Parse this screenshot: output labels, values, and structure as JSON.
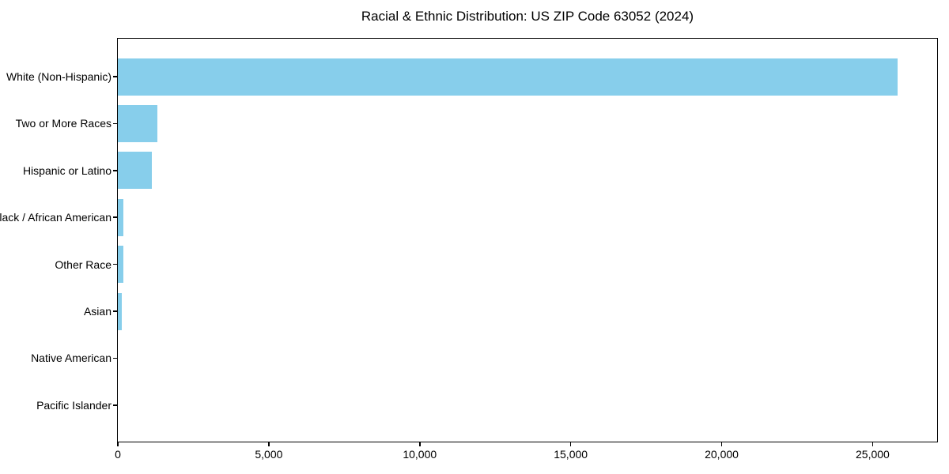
{
  "chart_data": {
    "type": "bar",
    "orientation": "horizontal",
    "title": "Racial & Ethnic Distribution: US ZIP Code 63052 (2024)",
    "categories": [
      "White (Non-Hispanic)",
      "Two or More Races",
      "Hispanic or Latino",
      "Black / African American",
      "Other Race",
      "Asian",
      "Native American",
      "Pacific Islander"
    ],
    "values": [
      25820,
      1310,
      1130,
      190,
      175,
      130,
      0,
      0
    ],
    "xlabel": "",
    "ylabel": "",
    "xlim": [
      0,
      27111
    ],
    "x_ticks": [
      0,
      5000,
      10000,
      15000,
      20000,
      25000
    ],
    "x_tick_labels": [
      "0",
      "5,000",
      "10,000",
      "15,000",
      "20,000",
      "25,000"
    ],
    "bar_color": "#87CEEB",
    "axis_color": "#000000",
    "text_color": "#000000",
    "background_color": "#ffffff",
    "grid": false,
    "legend": false
  }
}
